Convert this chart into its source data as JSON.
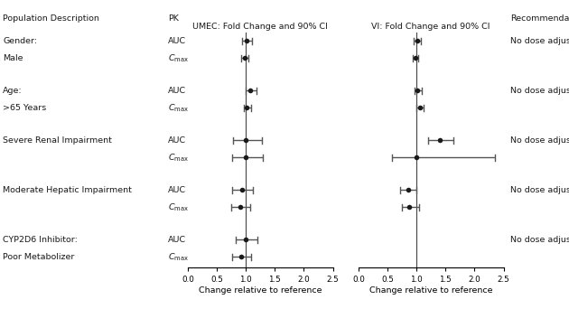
{
  "col_headers": {
    "pop_desc": "Population Description",
    "pk": "PK",
    "umec": "UMEC: Fold Change and 90% CI",
    "vi": "VI: Fold Change and 90% CI",
    "rec": "Recommendation"
  },
  "rows": [
    {
      "group": "Gender:",
      "subgroup": null,
      "pk": "AUC",
      "umec_val": 1.02,
      "umec_lo": 0.94,
      "umec_hi": 1.1,
      "vi_val": 1.01,
      "vi_lo": 0.95,
      "vi_hi": 1.08,
      "rec": "No dose adjustment"
    },
    {
      "group": null,
      "subgroup": "Male",
      "pk": "Cmax",
      "umec_val": 0.98,
      "umec_lo": 0.92,
      "umec_hi": 1.05,
      "vi_val": 0.98,
      "vi_lo": 0.93,
      "vi_hi": 1.03,
      "rec": null
    },
    {
      "group": "Age:",
      "subgroup": null,
      "pk": "AUC",
      "umec_val": 1.08,
      "umec_lo": 0.99,
      "umec_hi": 1.18,
      "vi_val": 1.02,
      "vi_lo": 0.96,
      "vi_hi": 1.09,
      "rec": "No dose adjustment"
    },
    {
      "group": null,
      "subgroup": ">65 Years",
      "pk": "Cmax",
      "umec_val": 1.02,
      "umec_lo": 0.96,
      "umec_hi": 1.09,
      "vi_val": 1.06,
      "vi_lo": 1.0,
      "vi_hi": 1.12,
      "rec": null
    },
    {
      "group": "Severe Renal Impairment",
      "subgroup": null,
      "pk": "AUC",
      "umec_val": 1.0,
      "umec_lo": 0.78,
      "umec_hi": 1.27,
      "vi_val": 1.4,
      "vi_lo": 1.2,
      "vi_hi": 1.63,
      "rec": "No dose adjustment"
    },
    {
      "group": null,
      "subgroup": null,
      "pk": "Cmax",
      "umec_val": 1.0,
      "umec_lo": 0.76,
      "umec_hi": 1.3,
      "vi_val": 1.0,
      "vi_lo": 0.57,
      "vi_hi": 2.35,
      "rec": null
    },
    {
      "group": "Moderate Hepatic Impairment",
      "subgroup": null,
      "pk": "AUC",
      "umec_val": 0.93,
      "umec_lo": 0.77,
      "umec_hi": 1.12,
      "vi_val": 0.85,
      "vi_lo": 0.72,
      "vi_hi": 1.0,
      "rec": "No dose adjustment"
    },
    {
      "group": null,
      "subgroup": null,
      "pk": "Cmax",
      "umec_val": 0.9,
      "umec_lo": 0.75,
      "umec_hi": 1.08,
      "vi_val": 0.88,
      "vi_lo": 0.75,
      "vi_hi": 1.04,
      "rec": null
    },
    {
      "group": "CYP2D6 Inhibitor:",
      "subgroup": null,
      "pk": "AUC",
      "umec_val": 1.0,
      "umec_lo": 0.83,
      "umec_hi": 1.2,
      "vi_val": null,
      "vi_lo": null,
      "vi_hi": null,
      "rec": "No dose adjustment"
    },
    {
      "group": null,
      "subgroup": "Poor Metabolizer",
      "pk": "Cmax",
      "umec_val": 0.92,
      "umec_lo": 0.77,
      "umec_hi": 1.09,
      "vi_val": null,
      "vi_lo": null,
      "vi_hi": null,
      "rec": null
    }
  ],
  "xlim": [
    0.0,
    2.5
  ],
  "xticks": [
    0.0,
    0.5,
    1.0,
    1.5,
    2.0,
    2.5
  ],
  "xlabel": "Change relative to reference",
  "vline_x": 1.0,
  "marker_color": "#1a1a1a",
  "line_color": "#555555",
  "text_color": "#1a1a1a",
  "bg_color": "#ffffff",
  "fontsize": 6.8
}
